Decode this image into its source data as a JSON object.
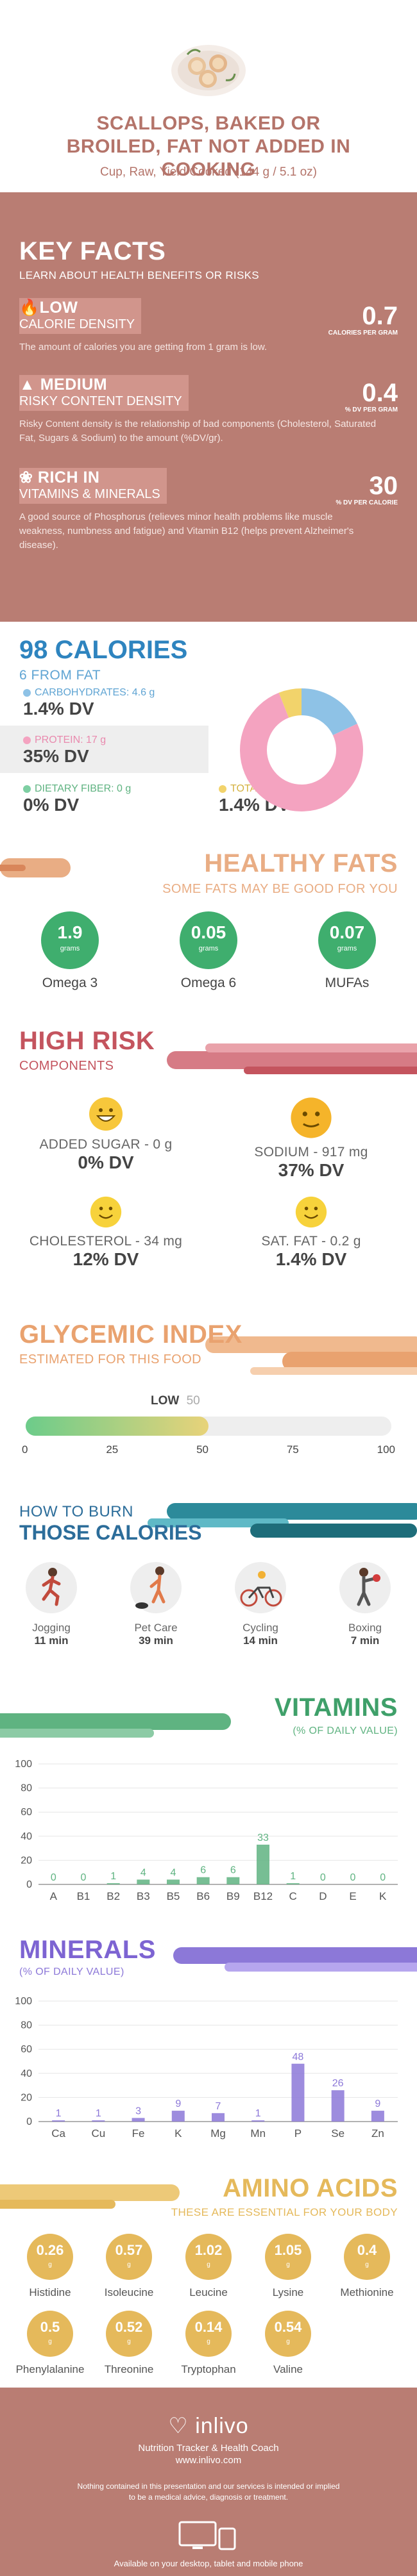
{
  "header": {
    "title": "SCALLOPS, BAKED OR BROILED, FAT NOT ADDED IN COOKING",
    "subtitle": "Cup, Raw, Yield Cooked (144 g / 5.1 oz)"
  },
  "key_facts": {
    "heading": "KEY FACTS",
    "subheading": "LEARN ABOUT HEALTH BENEFITS OR RISKS",
    "facts": [
      {
        "level": "LOW",
        "name": "CALORIE DENSITY",
        "value": "0.7",
        "unit": "CALORIES PER GRAM",
        "desc": "The amount of calories you are getting from 1 gram is low."
      },
      {
        "level": "MEDIUM",
        "name": "RISKY CONTENT DENSITY",
        "value": "0.4",
        "unit": "% DV PER GRAM",
        "desc": "Risky Content density is the relationship of bad components (Cholesterol, Saturated Fat, Sugars & Sodium) to the amount (%DV/gr)."
      },
      {
        "level": "RICH  IN",
        "name": "VITAMINS & MINERALS",
        "value": "30",
        "unit": "% DV PER CALORIE",
        "desc": "A good source of Phosphorus (relieves minor health problems like muscle weakness, numbness and fatigue) and Vitamin B12 (helps prevent Alzheimer's disease)."
      }
    ]
  },
  "calories": {
    "heading": "98 CALORIES",
    "subheading": "6 FROM FAT",
    "nutrients": [
      {
        "label": "CARBOHYDRATES: 4.6 g",
        "dv": "1.4% DV",
        "color": "#8ec2e6"
      },
      {
        "label": "PROTEIN: 17 g",
        "dv": "35% DV",
        "color": "#f4a3c0"
      },
      {
        "label": "DIETARY FIBER: 0 g",
        "dv": "0% DV",
        "color": "#7ecfa3"
      },
      {
        "label": "TOTAL FAT: 0.7 g",
        "dv": "1.4% DV",
        "color": "#f2d36b"
      }
    ]
  },
  "chart_data": [
    {
      "type": "pie",
      "title": "",
      "categories": [
        "Carbohydrates",
        "Protein",
        "Total Fat"
      ],
      "values": [
        18,
        76,
        6
      ],
      "colors": [
        "#8ec2e6",
        "#f4a3c0",
        "#f2d36b"
      ]
    },
    {
      "type": "bar",
      "title": "VITAMINS",
      "subtitle": "(% OF DAILY VALUE)",
      "categories": [
        "A",
        "B1",
        "B2",
        "B3",
        "B5",
        "B6",
        "B9",
        "B12",
        "C",
        "D",
        "E",
        "K"
      ],
      "values": [
        0,
        0,
        1,
        4,
        4,
        6,
        6,
        33,
        1,
        0,
        0,
        0
      ],
      "ylim": [
        0,
        100
      ],
      "yticks": [
        0,
        20,
        40,
        60,
        80,
        100
      ],
      "color": "#5fb381"
    },
    {
      "type": "bar",
      "title": "MINERALS",
      "subtitle": "(% OF DAILY VALUE)",
      "categories": [
        "Ca",
        "Cu",
        "Fe",
        "K",
        "Mg",
        "Mn",
        "P",
        "Se",
        "Zn"
      ],
      "values": [
        1,
        1,
        3,
        9,
        7,
        1,
        48,
        26,
        9
      ],
      "ylim": [
        0,
        100
      ],
      "yticks": [
        0,
        20,
        40,
        60,
        80,
        100
      ],
      "color": "#8c78d8"
    }
  ],
  "healthy_fats": {
    "heading": "HEALTHY FATS",
    "subheading": "SOME FATS MAY BE GOOD FOR YOU",
    "items": [
      {
        "value": "1.9",
        "unit": "grams",
        "name": "Omega 3"
      },
      {
        "value": "0.05",
        "unit": "grams",
        "name": "Omega 6"
      },
      {
        "value": "0.07",
        "unit": "grams",
        "name": "MUFAs"
      }
    ]
  },
  "high_risk": {
    "heading": "HIGH RISK",
    "subheading": "COMPONENTS",
    "items": [
      {
        "label": "ADDED SUGAR - 0 g",
        "dv": "0% DV",
        "face": "happy"
      },
      {
        "label": "SODIUM - 917 mg",
        "dv": "37% DV",
        "face": "neutral"
      },
      {
        "label": "CHOLESTEROL - 34 mg",
        "dv": "12% DV",
        "face": "smile"
      },
      {
        "label": "SAT. FAT - 0.2 g",
        "dv": "1.4% DV",
        "face": "smile"
      }
    ]
  },
  "glycemic": {
    "heading": "GLYCEMIC INDEX",
    "subheading": "ESTIMATED FOR THIS FOOD",
    "level_label": "LOW",
    "value": "50",
    "value_num": 50,
    "scale": [
      "0",
      "25",
      "50",
      "75",
      "100"
    ]
  },
  "burn": {
    "heading_line1": "HOW TO BURN",
    "heading_line2": "THOSE CALORIES",
    "activities": [
      {
        "name": "Jogging",
        "minutes": "11 min"
      },
      {
        "name": "Pet Care",
        "minutes": "39 min"
      },
      {
        "name": "Cycling",
        "minutes": "14 min"
      },
      {
        "name": "Boxing",
        "minutes": "7 min"
      }
    ]
  },
  "amino": {
    "heading": "AMINO ACIDS",
    "subheading": "THESE ARE ESSENTIAL FOR YOUR BODY",
    "items": [
      {
        "value": "0.26",
        "unit": "g",
        "name": "Histidine"
      },
      {
        "value": "0.57",
        "unit": "g",
        "name": "Isoleucine"
      },
      {
        "value": "1.02",
        "unit": "g",
        "name": "Leucine"
      },
      {
        "value": "1.05",
        "unit": "g",
        "name": "Lysine"
      },
      {
        "value": "0.4",
        "unit": "g",
        "name": "Methionine"
      },
      {
        "value": "0.5",
        "unit": "g",
        "name": "Phenylalanine"
      },
      {
        "value": "0.52",
        "unit": "g",
        "name": "Threonine"
      },
      {
        "value": "0.14",
        "unit": "g",
        "name": "Tryptophan"
      },
      {
        "value": "0.54",
        "unit": "g",
        "name": "Valine"
      }
    ]
  },
  "footer": {
    "brand": "inlivo",
    "tagline": "Nutrition Tracker & Health Coach",
    "url": "www.inlivo.com",
    "disclaimer": "Nothing contained in this presentation and our services is intended or implied to be a medical advice, diagnosis or treatment.",
    "available": "Available on your desktop, tablet and mobile phone"
  }
}
